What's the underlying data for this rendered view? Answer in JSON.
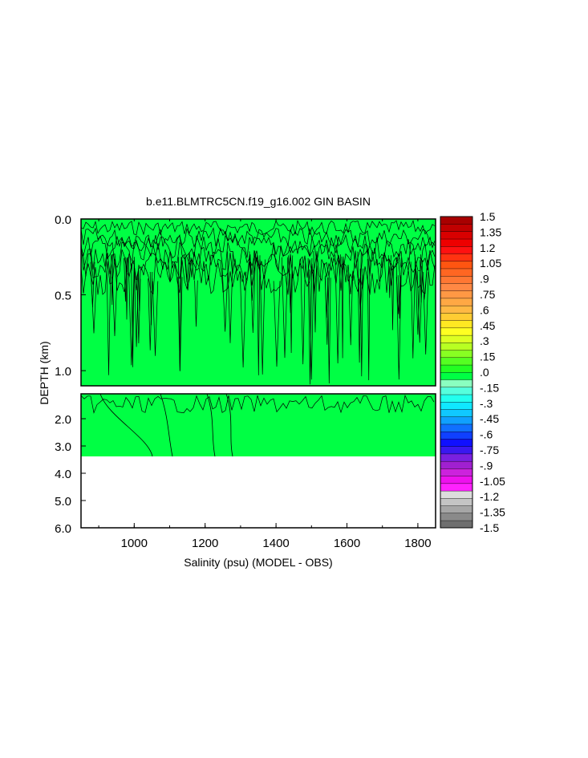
{
  "chart_data": {
    "type": "heatmap",
    "title": "b.e11.BLMTRC5CN.f19_g16.002 GIN BASIN",
    "xlabel": "Salinity (psu) (MODEL - OBS)",
    "ylabel": "DEPTH (km)",
    "xlim": [
      850,
      1850
    ],
    "x_ticks": [
      "1000",
      "1200",
      "1400",
      "1600",
      "1800"
    ],
    "upper_panel": {
      "ylim": [
        0.0,
        1.1
      ],
      "y_ticks": [
        "0.0",
        "0.5",
        "1.0"
      ],
      "dominant_value": 0.075
    },
    "lower_panel": {
      "ylim": [
        1.1,
        6.0
      ],
      "y_ticks": [
        "2.0",
        "3.0",
        "4.0",
        "5.0",
        "6.0"
      ],
      "data_bottom_depth": 3.4,
      "dominant_value": 0.075
    },
    "colorbar": {
      "min": -1.5,
      "max": 1.5,
      "step": 0.075,
      "labels": [
        "1.5",
        "1.35",
        "1.2",
        "1.05",
        ".9",
        ".75",
        ".6",
        ".45",
        ".3",
        ".15",
        ".0",
        "-.15",
        "-.3",
        "-.45",
        "-.6",
        "-.75",
        "-.9",
        "-1.05",
        "-1.2",
        "-1.35",
        "-1.5"
      ],
      "colors": [
        "#6e6e6e",
        "#8a8a8a",
        "#a6a6a6",
        "#c4c4c4",
        "#dcdcdc",
        "#ff22ff",
        "#ee11ee",
        "#cc22dd",
        "#a020d0",
        "#7a20e0",
        "#3a18f0",
        "#1010ff",
        "#1040ff",
        "#1070ff",
        "#10a0ff",
        "#10c8ff",
        "#10e8ff",
        "#22ffee",
        "#55ffdd",
        "#8affc0",
        "#00ff44",
        "#22ff22",
        "#55ff22",
        "#88ff22",
        "#b8ff22",
        "#ddff22",
        "#ffff22",
        "#ffe822",
        "#ffcc33",
        "#ffb844",
        "#ffa844",
        "#ff9844",
        "#ff8844",
        "#ff7733",
        "#ff6622",
        "#ff5511",
        "#ff3311",
        "#ff1111",
        "#ee0000",
        "#d80000",
        "#c00000",
        "#a80000"
      ]
    }
  }
}
